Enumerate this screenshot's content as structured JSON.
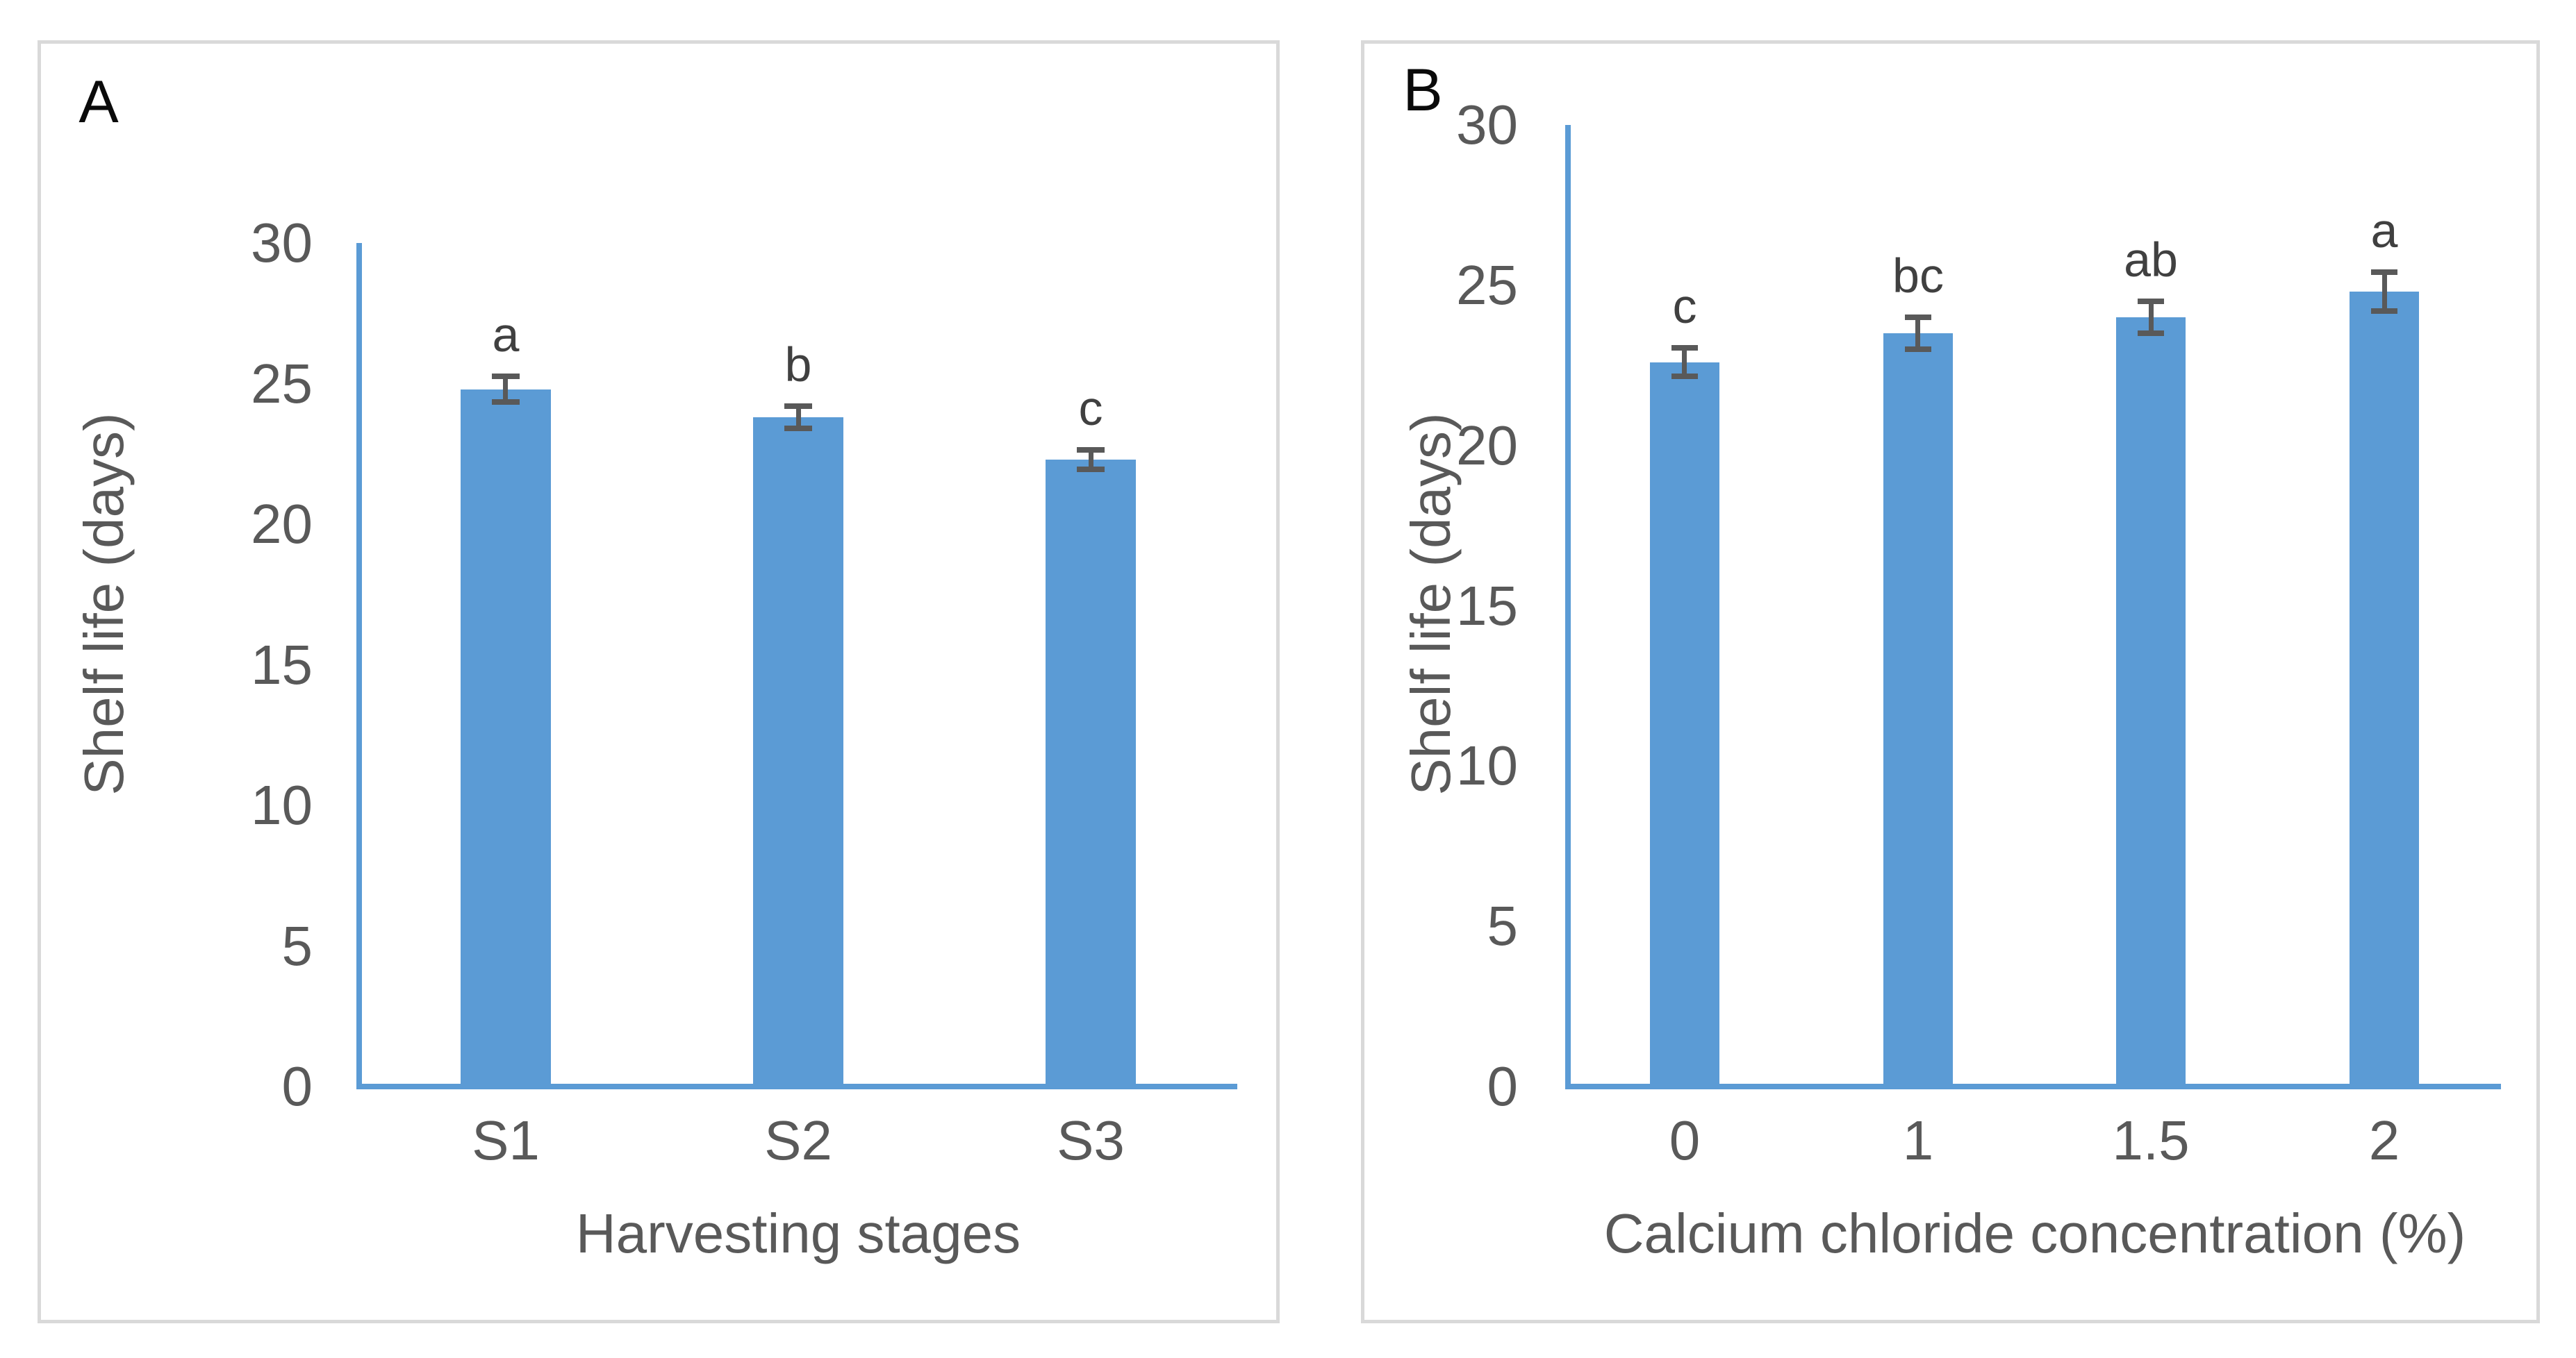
{
  "figure": {
    "background": "#ffffff",
    "colors": {
      "bar": "#5b9bd5",
      "axis": "#5b9bd5",
      "error_bar": "#595959",
      "tick_text": "#595959",
      "axis_title_text": "#595959",
      "sig_letter_text": "#404040",
      "panel_label_text": "#0a0a0a",
      "panel_border": "#d9d9d9"
    }
  },
  "chart_data": [
    {
      "type": "bar",
      "panel_label": "A",
      "title": "",
      "xlabel": "Harvesting stages",
      "ylabel": "Shelf life (days)",
      "ylim": [
        0,
        30
      ],
      "yticks": [
        0,
        5,
        10,
        15,
        20,
        25,
        30
      ],
      "grid": false,
      "legend": "none",
      "categories": [
        "S1",
        "S2",
        "S3"
      ],
      "values": [
        24.8,
        23.8,
        22.3
      ],
      "errors": [
        0.45,
        0.4,
        0.35
      ],
      "sig_letters": [
        "a",
        "b",
        "c"
      ]
    },
    {
      "type": "bar",
      "panel_label": "B",
      "title": "",
      "xlabel": "Calcium chloride concentration (%)",
      "ylabel": "Shelf life (days)",
      "ylim": [
        0,
        30
      ],
      "yticks": [
        0,
        5,
        10,
        15,
        20,
        25,
        30
      ],
      "grid": false,
      "legend": "none",
      "categories": [
        "0",
        "1",
        "1.5",
        "2"
      ],
      "values": [
        22.6,
        23.5,
        24.0,
        24.8
      ],
      "errors": [
        0.45,
        0.5,
        0.5,
        0.6
      ],
      "sig_letters": [
        "c",
        "bc",
        "ab",
        "a"
      ]
    }
  ]
}
